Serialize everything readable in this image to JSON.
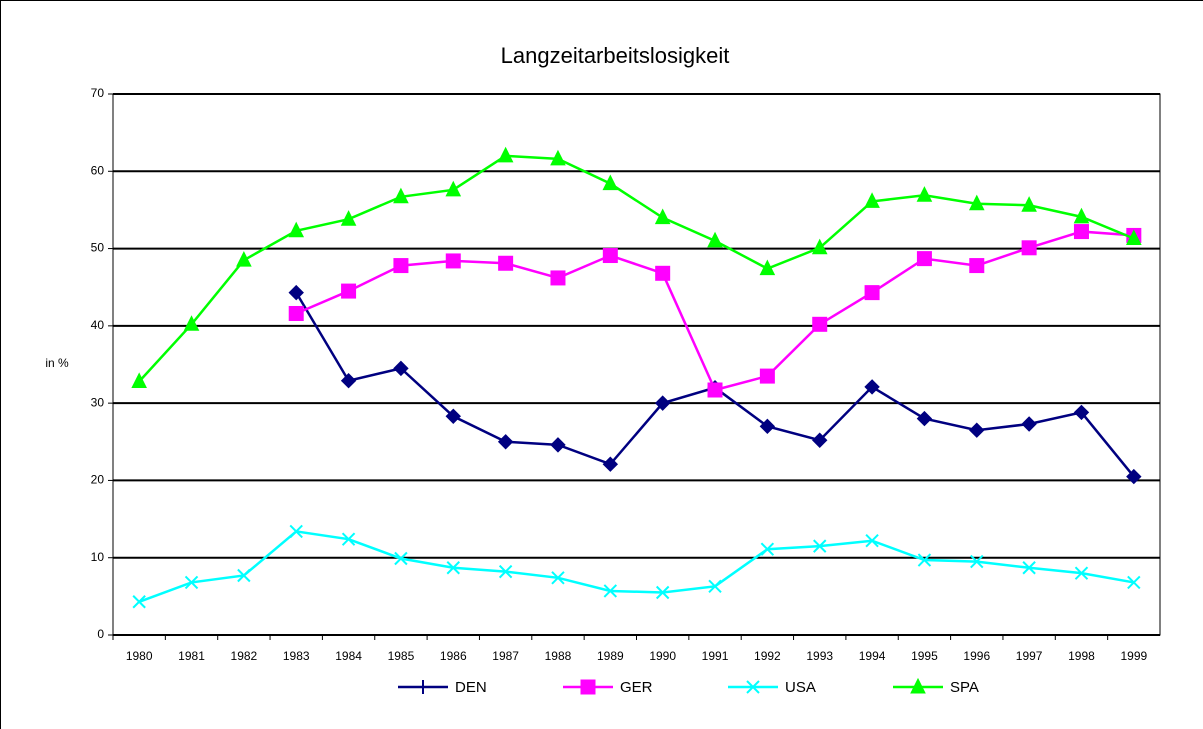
{
  "chart_data": {
    "type": "line",
    "title": "Langzeitarbeitslosigkeit",
    "y_label": "in %",
    "categories": [
      "1980",
      "1981",
      "1982",
      "1983",
      "1984",
      "1985",
      "1986",
      "1987",
      "1988",
      "1989",
      "1990",
      "1991",
      "1992",
      "1993",
      "1994",
      "1995",
      "1996",
      "1997",
      "1998",
      "1999"
    ],
    "series": [
      {
        "name": "DEN",
        "color": "#000080",
        "marker": "diamond",
        "values": [
          null,
          null,
          null,
          44.3,
          32.9,
          34.5,
          28.3,
          25.0,
          24.6,
          22.1,
          30.0,
          32.0,
          27.0,
          25.2,
          32.1,
          28.0,
          26.5,
          27.3,
          28.8,
          20.5
        ]
      },
      {
        "name": "GER",
        "color": "#ff00ff",
        "marker": "square",
        "values": [
          null,
          null,
          null,
          41.6,
          44.5,
          47.8,
          48.4,
          48.1,
          46.2,
          49.1,
          46.8,
          31.7,
          33.5,
          40.2,
          44.3,
          48.7,
          47.8,
          50.1,
          52.2,
          51.7
        ]
      },
      {
        "name": "USA",
        "color": "#00ffff",
        "marker": "x",
        "values": [
          4.3,
          6.8,
          7.7,
          13.4,
          12.4,
          9.9,
          8.7,
          8.2,
          7.4,
          5.7,
          5.5,
          6.3,
          11.1,
          11.5,
          12.2,
          9.7,
          9.5,
          8.7,
          8.0,
          6.8
        ]
      },
      {
        "name": "SPA",
        "color": "#00ff00",
        "marker": "triangle",
        "values": [
          32.8,
          40.2,
          48.5,
          52.3,
          53.8,
          56.7,
          57.6,
          62.0,
          61.6,
          58.4,
          54.0,
          51.0,
          47.4,
          50.1,
          56.1,
          56.9,
          55.8,
          55.6,
          54.1,
          51.3
        ]
      }
    ],
    "ylim": [
      0,
      70
    ],
    "yticks": [
      0,
      10,
      20,
      30,
      40,
      50,
      60,
      70
    ],
    "grid": true,
    "legend": "bottom"
  }
}
